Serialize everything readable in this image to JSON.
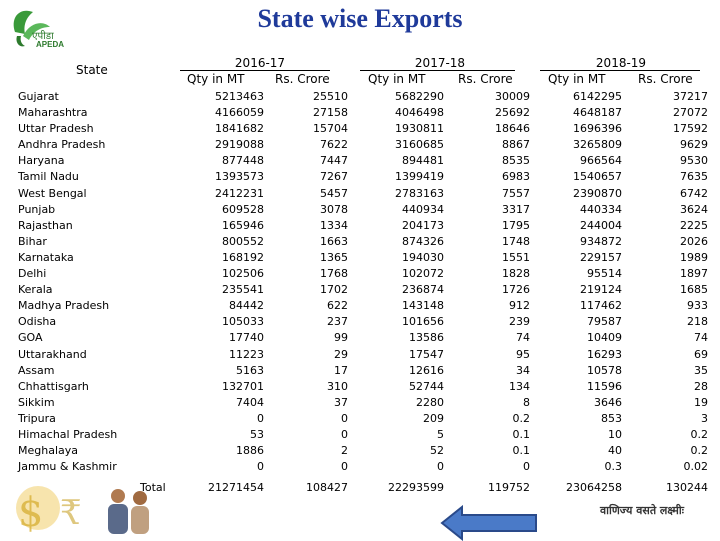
{
  "title": "State wise Exports",
  "logo": {
    "hindi": "एपीडा",
    "text": "APEDA"
  },
  "header": {
    "state": "State",
    "years": [
      "2016-17",
      "2017-18",
      "2018-19"
    ],
    "qty": "Qty in MT",
    "rs": "Rs. Crore"
  },
  "states": [
    "Gujarat",
    "Maharashtra",
    "Uttar Pradesh",
    "Andhra Pradesh",
    "Haryana",
    "Tamil Nadu",
    "West Bengal",
    "Punjab",
    "Rajasthan",
    "Bihar",
    "Karnataka",
    "Delhi",
    "Kerala",
    "Madhya Pradesh",
    "Odisha",
    "GOA",
    "Uttarakhand",
    "Assam",
    "Chhattisgarh",
    "Sikkim",
    "Tripura",
    "Himachal Pradesh",
    "Meghalaya",
    "Jammu & Kashmir"
  ],
  "columns": [
    [
      "5213463",
      "4166059",
      "1841682",
      "2919088",
      "877448",
      "1393573",
      "2412231",
      "609528",
      "165946",
      "800552",
      "168192",
      "102506",
      "235541",
      "84442",
      "105033",
      "17740",
      "11223",
      "5163",
      "132701",
      "7404",
      "0",
      "53",
      "1886",
      "0"
    ],
    [
      "25510",
      "27158",
      "15704",
      "7622",
      "7447",
      "7267",
      "5457",
      "3078",
      "1334",
      "1663",
      "1365",
      "1768",
      "1702",
      "622",
      "237",
      "99",
      "29",
      "17",
      "310",
      "37",
      "0",
      "0",
      "2",
      "0"
    ],
    [
      "5682290",
      "4046498",
      "1930811",
      "3160685",
      "894481",
      "1399419",
      "2783163",
      "440934",
      "204173",
      "874326",
      "194030",
      "102072",
      "236874",
      "143148",
      "101656",
      "13586",
      "17547",
      "12616",
      "52744",
      "2280",
      "209",
      "5",
      "52",
      "0"
    ],
    [
      "30009",
      "25692",
      "18646",
      "8867",
      "8535",
      "6983",
      "7557",
      "3317",
      "1795",
      "1748",
      "1551",
      "1828",
      "1726",
      "912",
      "239",
      "74",
      "95",
      "34",
      "134",
      "8",
      "0.2",
      "0.1",
      "0.1",
      "0"
    ],
    [
      "6142295",
      "4648187",
      "1696396",
      "3265809",
      "966564",
      "1540657",
      "2390870",
      "440334",
      "244004",
      "934872",
      "229157",
      "95514",
      "219124",
      "117462",
      "79587",
      "10409",
      "16293",
      "10578",
      "11596",
      "3646",
      "853",
      "10",
      "40",
      "0.3"
    ],
    [
      "37217",
      "27072",
      "17592",
      "9629",
      "9530",
      "7635",
      "6742",
      "3624",
      "2225",
      "2026",
      "1989",
      "1897",
      "1685",
      "933",
      "218",
      "74",
      "69",
      "35",
      "28",
      "19",
      "3",
      "0.2",
      "0.2",
      "0.02"
    ]
  ],
  "total_label": "Total",
  "totals": [
    "21271454",
    "108427",
    "22293599",
    "119752",
    "23064258",
    "130244"
  ],
  "footer_hindi": "वाणिज्य वसते लक्ष्मीः"
}
